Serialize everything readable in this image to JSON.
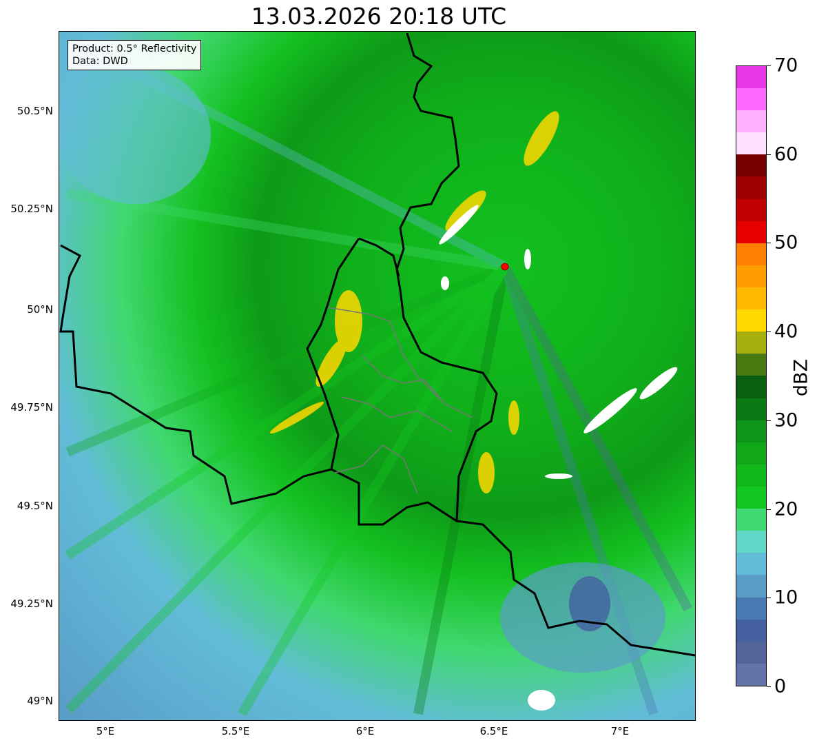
{
  "title": "13.03.2026 20:18 UTC",
  "infobox": {
    "product": "Product: 0.5° Reflectivity",
    "data": "Data: DWD"
  },
  "axes": {
    "x_ticks": [
      "5°E",
      "5.5°E",
      "6°E",
      "6.5°E",
      "7°E"
    ],
    "y_ticks": [
      "50.5°N",
      "50.25°N",
      "50°N",
      "49.75°N",
      "49.5°N",
      "49.25°N",
      "49°N"
    ]
  },
  "colorbar": {
    "label": "dBZ",
    "ticks": [
      "0",
      "10",
      "20",
      "30",
      "40",
      "50",
      "60",
      "70"
    ],
    "range": [
      0,
      70
    ],
    "step": 2.5,
    "colors": [
      "#6474a8",
      "#52649a",
      "#4460a0",
      "#4a78b0",
      "#5a9ec8",
      "#62bcd8",
      "#60d8c8",
      "#40d870",
      "#12c820",
      "#10b81a",
      "#10a818",
      "#0e9418",
      "#0a7a14",
      "#0a6010",
      "#487810",
      "#a8b010",
      "#ffd800",
      "#ffb800",
      "#ff9c00",
      "#ff8000",
      "#e80000",
      "#c00000",
      "#a00000",
      "#780000",
      "#ffe0ff",
      "#ffb0ff",
      "#ff68ff",
      "#e838e8"
    ]
  },
  "station": {
    "marker_color": "#ff0000"
  }
}
